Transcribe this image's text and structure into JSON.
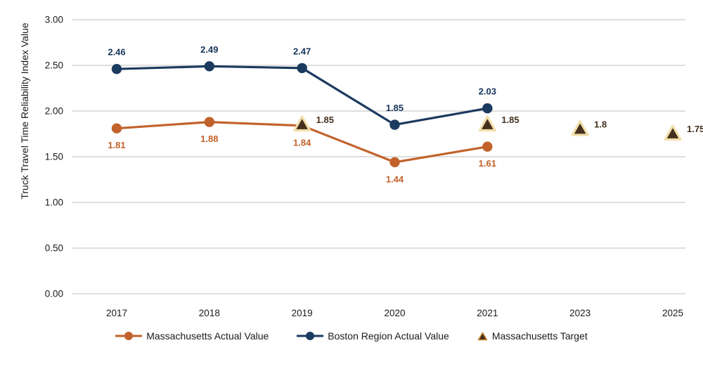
{
  "chart_data": {
    "type": "line",
    "title": "",
    "ylabel": "Truck Travel Time Reliability Index Value",
    "xlabel": "",
    "categories": [
      "2017",
      "2018",
      "2019",
      "2020",
      "2021",
      "2023",
      "2025"
    ],
    "ylim": [
      0,
      3
    ],
    "ytick_step": 0.5,
    "ytick_labels": [
      "0.00",
      "0.50",
      "1.00",
      "1.50",
      "2.00",
      "2.50",
      "3.00"
    ],
    "grid": true,
    "legend_position": "bottom",
    "colors": {
      "massachusetts_orange": "#C2622B",
      "boston_navy": "#1B3A5F",
      "target_fill": "#44301D",
      "target_border": "#F3E0AC",
      "legend_triangle_border": "#C8862C",
      "gridline": "#D9D9D9",
      "axis_text": "#1A1A1A"
    },
    "series": [
      {
        "name": "Massachusetts Actual Value",
        "kind": "line",
        "marker": "circle",
        "color": "#C2622B",
        "label_color": "#C2622B",
        "label_position": "below",
        "values": [
          1.81,
          1.88,
          1.84,
          1.44,
          1.61,
          null,
          null
        ],
        "labels": [
          "1.81",
          "1.88",
          "1.84",
          "1.44",
          "1.61",
          null,
          null
        ]
      },
      {
        "name": "Boston Region Actual Value",
        "kind": "line",
        "marker": "circle",
        "color": "#1B3A5F",
        "label_color": "#16365C",
        "label_position": "above",
        "values": [
          2.46,
          2.49,
          2.47,
          1.85,
          2.03,
          null,
          null
        ],
        "labels": [
          "2.46",
          "2.49",
          "2.47",
          "1.85",
          "2.03",
          null,
          null
        ]
      },
      {
        "name": "Massachusetts Target",
        "kind": "scatter",
        "marker": "triangle",
        "color": "#44301D",
        "marker_border": "#F3E0AC",
        "label_color": "#44301D",
        "label_position": "right",
        "values": [
          null,
          null,
          1.85,
          null,
          1.85,
          1.8,
          1.75
        ],
        "labels": [
          null,
          null,
          "1.85",
          null,
          "1.85",
          "1.8",
          "1.75"
        ]
      }
    ]
  }
}
